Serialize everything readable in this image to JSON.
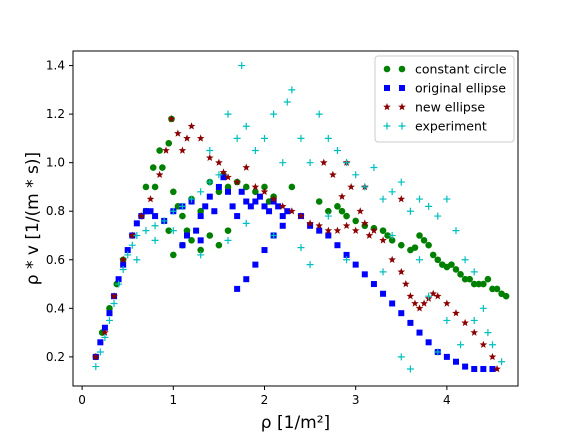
{
  "chart_data": {
    "type": "scatter",
    "xlabel": "ρ [1/m²]",
    "ylabel": "ρ * v [1/(m * s)]",
    "xlim": [
      -0.1,
      4.78
    ],
    "ylim": [
      0.08,
      1.46
    ],
    "x_ticks": [
      "0",
      "1",
      "2",
      "3",
      "4"
    ],
    "y_ticks": [
      "0.2",
      "0.4",
      "0.6",
      "0.8",
      "1.0",
      "1.2",
      "1.4"
    ],
    "legend_position": "top-right",
    "grid": false,
    "series": [
      {
        "name": "constant circle",
        "marker": "circle",
        "color": "#008000",
        "points": [
          [
            0.15,
            0.2
          ],
          [
            0.22,
            0.3
          ],
          [
            0.3,
            0.4
          ],
          [
            0.38,
            0.5
          ],
          [
            0.45,
            0.6
          ],
          [
            0.55,
            0.7
          ],
          [
            0.65,
            0.78
          ],
          [
            0.7,
            0.8
          ],
          [
            0.8,
            0.9
          ],
          [
            0.88,
            0.98
          ],
          [
            0.95,
            1.08
          ],
          [
            0.98,
            1.18
          ],
          [
            0.7,
            0.9
          ],
          [
            0.78,
            0.98
          ],
          [
            0.85,
            1.05
          ],
          [
            1.0,
            0.88
          ],
          [
            1.05,
            0.82
          ],
          [
            1.1,
            0.78
          ],
          [
            1.15,
            0.72
          ],
          [
            1.2,
            0.68
          ],
          [
            1.0,
            0.62
          ],
          [
            0.95,
            0.72
          ],
          [
            1.1,
            0.66
          ],
          [
            1.2,
            0.85
          ],
          [
            1.3,
            0.8
          ],
          [
            1.4,
            0.92
          ],
          [
            1.5,
            0.88
          ],
          [
            1.55,
            0.95
          ],
          [
            1.6,
            0.9
          ],
          [
            1.7,
            0.92
          ],
          [
            1.8,
            0.9
          ],
          [
            1.9,
            0.88
          ],
          [
            2.0,
            0.9
          ],
          [
            2.05,
            0.84
          ],
          [
            2.1,
            0.86
          ],
          [
            1.3,
            0.64
          ],
          [
            1.4,
            0.7
          ],
          [
            1.5,
            0.66
          ],
          [
            1.6,
            0.72
          ],
          [
            2.3,
            0.9
          ],
          [
            2.6,
            0.84
          ],
          [
            2.7,
            0.8
          ],
          [
            2.8,
            0.82
          ],
          [
            2.85,
            0.8
          ],
          [
            2.9,
            0.78
          ],
          [
            3.0,
            0.76
          ],
          [
            3.1,
            0.74
          ],
          [
            3.2,
            0.73
          ],
          [
            3.3,
            0.72
          ],
          [
            3.35,
            0.7
          ],
          [
            3.4,
            0.68
          ],
          [
            3.5,
            0.66
          ],
          [
            3.6,
            0.64
          ],
          [
            3.65,
            0.65
          ],
          [
            3.7,
            0.7
          ],
          [
            3.75,
            0.68
          ],
          [
            3.8,
            0.66
          ],
          [
            3.85,
            0.62
          ],
          [
            3.9,
            0.6
          ],
          [
            3.95,
            0.58
          ],
          [
            4.0,
            0.57
          ],
          [
            4.05,
            0.58
          ],
          [
            4.1,
            0.56
          ],
          [
            4.15,
            0.54
          ],
          [
            4.2,
            0.52
          ],
          [
            4.25,
            0.52
          ],
          [
            4.3,
            0.5
          ],
          [
            4.35,
            0.5
          ],
          [
            4.4,
            0.5
          ],
          [
            4.45,
            0.52
          ],
          [
            4.5,
            0.48
          ],
          [
            4.55,
            0.48
          ],
          [
            4.6,
            0.46
          ],
          [
            4.65,
            0.45
          ]
        ]
      },
      {
        "name": "original ellipse",
        "marker": "square",
        "color": "#0000ff",
        "points": [
          [
            0.15,
            0.2
          ],
          [
            0.2,
            0.26
          ],
          [
            0.25,
            0.32
          ],
          [
            0.3,
            0.38
          ],
          [
            0.35,
            0.45
          ],
          [
            0.4,
            0.52
          ],
          [
            0.45,
            0.58
          ],
          [
            0.5,
            0.64
          ],
          [
            0.55,
            0.7
          ],
          [
            0.6,
            0.75
          ],
          [
            0.65,
            0.78
          ],
          [
            0.7,
            0.8
          ],
          [
            0.75,
            0.8
          ],
          [
            0.8,
            0.78
          ],
          [
            0.9,
            0.76
          ],
          [
            1.0,
            0.8
          ],
          [
            1.1,
            0.82
          ],
          [
            1.2,
            0.84
          ],
          [
            1.25,
            0.72
          ],
          [
            1.3,
            0.78
          ],
          [
            1.35,
            0.82
          ],
          [
            1.4,
            0.86
          ],
          [
            1.45,
            0.8
          ],
          [
            1.5,
            0.9
          ],
          [
            1.55,
            0.94
          ],
          [
            1.6,
            0.88
          ],
          [
            1.65,
            0.82
          ],
          [
            1.7,
            0.78
          ],
          [
            1.75,
            0.88
          ],
          [
            1.8,
            0.84
          ],
          [
            1.85,
            0.82
          ],
          [
            1.9,
            0.84
          ],
          [
            1.95,
            0.86
          ],
          [
            2.0,
            0.82
          ],
          [
            2.05,
            0.8
          ],
          [
            2.1,
            0.84
          ],
          [
            2.15,
            0.82
          ],
          [
            2.2,
            0.78
          ],
          [
            2.25,
            0.8
          ],
          [
            1.1,
            0.66
          ],
          [
            1.15,
            0.7
          ],
          [
            1.3,
            0.68
          ],
          [
            1.7,
            0.48
          ],
          [
            1.8,
            0.52
          ],
          [
            1.9,
            0.58
          ],
          [
            2.0,
            0.64
          ],
          [
            2.1,
            0.7
          ],
          [
            2.2,
            0.74
          ],
          [
            2.4,
            0.78
          ],
          [
            2.5,
            0.74
          ],
          [
            2.6,
            0.72
          ],
          [
            2.7,
            0.7
          ],
          [
            2.8,
            0.66
          ],
          [
            2.9,
            0.62
          ],
          [
            3.0,
            0.58
          ],
          [
            3.1,
            0.54
          ],
          [
            3.2,
            0.5
          ],
          [
            3.3,
            0.46
          ],
          [
            3.4,
            0.42
          ],
          [
            3.5,
            0.38
          ],
          [
            3.6,
            0.34
          ],
          [
            3.7,
            0.3
          ],
          [
            3.8,
            0.26
          ],
          [
            3.9,
            0.22
          ],
          [
            4.0,
            0.2
          ],
          [
            4.1,
            0.18
          ],
          [
            4.2,
            0.16
          ],
          [
            4.3,
            0.15
          ],
          [
            4.4,
            0.15
          ],
          [
            4.5,
            0.15
          ]
        ]
      },
      {
        "name": "new ellipse",
        "marker": "star",
        "color": "#8b0000",
        "points": [
          [
            0.15,
            0.2
          ],
          [
            0.25,
            0.3
          ],
          [
            0.35,
            0.45
          ],
          [
            0.45,
            0.6
          ],
          [
            0.55,
            0.7
          ],
          [
            0.65,
            0.78
          ],
          [
            0.75,
            0.85
          ],
          [
            0.85,
            0.95
          ],
          [
            0.92,
            1.05
          ],
          [
            0.98,
            1.18
          ],
          [
            1.05,
            1.12
          ],
          [
            1.1,
            1.05
          ],
          [
            1.15,
            1.1
          ],
          [
            1.2,
            1.15
          ],
          [
            1.3,
            1.1
          ],
          [
            1.4,
            1.02
          ],
          [
            1.5,
            1.0
          ],
          [
            1.55,
            0.96
          ],
          [
            1.6,
            0.94
          ],
          [
            1.7,
            0.92
          ],
          [
            1.8,
            0.98
          ],
          [
            1.9,
            0.9
          ],
          [
            2.0,
            0.88
          ],
          [
            2.1,
            0.85
          ],
          [
            2.2,
            0.82
          ],
          [
            2.3,
            0.8
          ],
          [
            2.4,
            0.78
          ],
          [
            2.5,
            0.75
          ],
          [
            2.6,
            0.74
          ],
          [
            2.7,
            0.72
          ],
          [
            2.8,
            0.72
          ],
          [
            2.85,
            0.86
          ],
          [
            2.9,
            0.74
          ],
          [
            2.95,
            0.9
          ],
          [
            3.0,
            0.72
          ],
          [
            3.05,
            0.8
          ],
          [
            3.1,
            0.75
          ],
          [
            3.15,
            0.7
          ],
          [
            3.2,
            0.72
          ],
          [
            3.3,
            0.68
          ],
          [
            3.4,
            0.6
          ],
          [
            3.5,
            0.55
          ],
          [
            3.55,
            0.5
          ],
          [
            3.6,
            0.45
          ],
          [
            3.65,
            0.42
          ],
          [
            3.7,
            0.4
          ],
          [
            3.75,
            0.42
          ],
          [
            3.8,
            0.44
          ],
          [
            3.85,
            0.46
          ],
          [
            3.9,
            0.45
          ],
          [
            4.0,
            0.42
          ],
          [
            4.1,
            0.38
          ],
          [
            4.2,
            0.34
          ],
          [
            4.3,
            0.3
          ],
          [
            4.4,
            0.25
          ],
          [
            4.5,
            0.2
          ],
          [
            4.55,
            0.15
          ],
          [
            2.65,
            1.0
          ],
          [
            2.75,
            0.95
          ],
          [
            2.9,
            1.0
          ],
          [
            3.1,
            0.9
          ],
          [
            3.5,
            0.85
          ]
        ]
      },
      {
        "name": "experiment",
        "marker": "plus",
        "color": "#00bfbf",
        "points": [
          [
            0.15,
            0.16
          ],
          [
            0.2,
            0.22
          ],
          [
            0.25,
            0.28
          ],
          [
            0.3,
            0.35
          ],
          [
            0.35,
            0.42
          ],
          [
            0.4,
            0.5
          ],
          [
            0.45,
            0.56
          ],
          [
            0.5,
            0.62
          ],
          [
            0.55,
            0.66
          ],
          [
            0.6,
            0.7
          ],
          [
            0.7,
            0.72
          ],
          [
            0.8,
            0.74
          ],
          [
            0.9,
            0.76
          ],
          [
            1.0,
            0.8
          ],
          [
            1.1,
            0.82
          ],
          [
            1.2,
            0.85
          ],
          [
            1.3,
            0.88
          ],
          [
            1.4,
            0.92
          ],
          [
            1.5,
            0.95
          ],
          [
            1.6,
            1.2
          ],
          [
            1.7,
            1.1
          ],
          [
            1.75,
            1.4
          ],
          [
            1.8,
            1.15
          ],
          [
            1.9,
            1.05
          ],
          [
            2.0,
            1.1
          ],
          [
            2.1,
            1.2
          ],
          [
            2.2,
            1.0
          ],
          [
            2.25,
            1.25
          ],
          [
            2.3,
            1.3
          ],
          [
            2.4,
            1.1
          ],
          [
            2.5,
            1.0
          ],
          [
            2.6,
            1.2
          ],
          [
            2.7,
            1.1
          ],
          [
            2.8,
            1.05
          ],
          [
            2.9,
            1.0
          ],
          [
            3.0,
            0.95
          ],
          [
            3.1,
            0.9
          ],
          [
            3.2,
            0.98
          ],
          [
            3.3,
            0.85
          ],
          [
            3.4,
            0.88
          ],
          [
            3.5,
            0.92
          ],
          [
            3.6,
            0.8
          ],
          [
            3.7,
            0.85
          ],
          [
            3.8,
            0.82
          ],
          [
            3.9,
            0.78
          ],
          [
            4.0,
            0.85
          ],
          [
            4.1,
            0.72
          ],
          [
            4.2,
            0.6
          ],
          [
            4.3,
            0.55
          ],
          [
            4.4,
            0.4
          ],
          [
            4.45,
            0.3
          ],
          [
            4.5,
            0.25
          ],
          [
            4.6,
            0.18
          ],
          [
            3.5,
            0.2
          ],
          [
            3.6,
            0.15
          ],
          [
            4.0,
            0.35
          ],
          [
            3.8,
            0.45
          ],
          [
            3.3,
            0.55
          ],
          [
            2.9,
            0.6
          ],
          [
            2.5,
            0.58
          ],
          [
            2.1,
            0.7
          ],
          [
            1.6,
            0.68
          ],
          [
            1.3,
            0.62
          ],
          [
            1.0,
            0.72
          ],
          [
            0.8,
            0.68
          ],
          [
            0.6,
            0.6
          ],
          [
            1.4,
            1.05
          ],
          [
            1.8,
            0.75
          ],
          [
            2.4,
            0.65
          ],
          [
            3.7,
            0.6
          ],
          [
            4.3,
            0.35
          ],
          [
            4.15,
            0.25
          ],
          [
            3.9,
            0.22
          ],
          [
            3.4,
            0.7
          ],
          [
            2.7,
            0.78
          ]
        ]
      }
    ]
  }
}
